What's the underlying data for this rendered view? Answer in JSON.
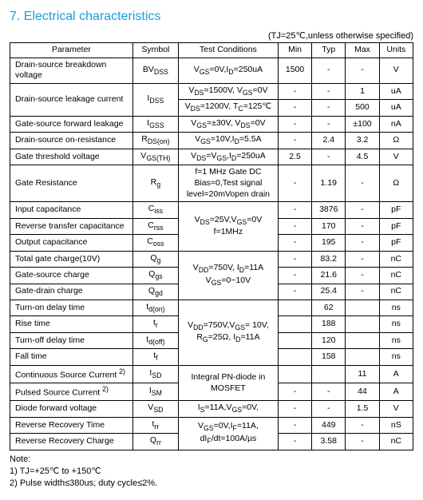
{
  "section_title": "7.  Electrical characteristics",
  "condition_note": "(TJ=25℃,unless otherwise specified)",
  "headers": {
    "parameter": "Parameter",
    "symbol": "Symbol",
    "test_conditions": "Test Conditions",
    "min": "Min",
    "typ": "Typ",
    "max": "Max",
    "units": "Units"
  },
  "rows": [
    {
      "param": "Drain-source breakdown voltage",
      "symbol": "BV<sub>DSS</sub>",
      "tc": "V<sub>GS</sub>=0V,I<sub>D</sub>=250uA",
      "min": "1500",
      "typ": "-",
      "max": "-",
      "units": "V"
    },
    {
      "param": "Drain-source leakage current",
      "symbol": "I<sub>DSS</sub>",
      "tc": "V<sub>DS</sub>=1500V, V<sub>GS</sub>=0V",
      "min": "-",
      "typ": "-",
      "max": "1",
      "units": "uA",
      "rowspan_param": 2,
      "rowspan_symbol": 2
    },
    {
      "tc": "V<sub>DS</sub>=1200V, T<sub>C</sub>=125℃",
      "min": "-",
      "typ": "-",
      "max": "500",
      "units": "uA"
    },
    {
      "param": "Gate-source forward leakage",
      "symbol": "I<sub>GSS</sub>",
      "tc": "V<sub>GS</sub>=±30V, V<sub>DS</sub>=0V",
      "min": "-",
      "typ": "-",
      "max": "±100",
      "units": "nA"
    },
    {
      "param": "Drain-source on-resistance",
      "symbol": "R<sub>DS(on)</sub>",
      "tc": "V<sub>GS</sub>=10V,I<sub>D</sub>=5.5A",
      "min": "-",
      "typ": "2.4",
      "max": "3.2",
      "units": "Ω"
    },
    {
      "param": "Gate threshold voltage",
      "symbol": "V<sub>GS(TH)</sub>",
      "tc": "V<sub>DS</sub>=V<sub>GS</sub>,I<sub>D</sub>=250uA",
      "min": "2.5",
      "typ": "-",
      "max": "4.5",
      "units": "V"
    },
    {
      "param": "Gate Resistance",
      "symbol": "R<sub>g</sub>",
      "tc": "f=1 MHz Gate DC Bias=0,Test signal level=20mVopen drain",
      "min": "-",
      "typ": "1.19",
      "max": "-",
      "units": "Ω"
    },
    {
      "param": "Input capacitance",
      "symbol": "C<sub>iss</sub>",
      "tc": "V<sub>DS</sub>=25V,V<sub>GS</sub>=0V f=1MHz",
      "min": "-",
      "typ": "3876",
      "max": "-",
      "units": "pF",
      "rowspan_tc": 3
    },
    {
      "param": "Reverse transfer capacitance",
      "symbol": "C<sub>rss</sub>",
      "min": "-",
      "typ": "170",
      "max": "-",
      "units": "pF"
    },
    {
      "param": "Output capacitance",
      "symbol": "C<sub>oss</sub>",
      "min": "-",
      "typ": "195",
      "max": "-",
      "units": "pF"
    },
    {
      "param": "Total gate charge(10V)",
      "symbol": "Q<sub>g</sub>",
      "tc": "V<sub>DD</sub>=750V, I<sub>D</sub>=11A V<sub>GS</sub>=0~10V",
      "min": "-",
      "typ": "83.2",
      "max": "-",
      "units": "nC",
      "rowspan_tc": 3
    },
    {
      "param": "Gate-source charge",
      "symbol": "Q<sub>gs</sub>",
      "min": "-",
      "typ": "21.6",
      "max": "-",
      "units": "nC"
    },
    {
      "param": "Gate-drain charge",
      "symbol": "Q<sub>gd</sub>",
      "min": "-",
      "typ": "25.4",
      "max": "-",
      "units": "nC"
    },
    {
      "param": "Turn-on delay time",
      "symbol": "t<sub>d(on)</sub>",
      "tc": "V<sub>DD</sub>=750V,V<sub>GS</sub>= 10V, R<sub>G</sub>=25Ω, I<sub>D</sub>=11A",
      "min": "",
      "typ": "62",
      "max": "",
      "units": "ns",
      "rowspan_tc": 4
    },
    {
      "param": "Rise time",
      "symbol": "t<sub>r</sub>",
      "min": "",
      "typ": "188",
      "max": "",
      "units": "ns"
    },
    {
      "param": "Turn-off delay time",
      "symbol": "t<sub>d(off)</sub>",
      "min": "",
      "typ": "120",
      "max": "",
      "units": "ns"
    },
    {
      "param": "Fall time",
      "symbol": "t<sub>f</sub>",
      "min": "",
      "typ": "158",
      "max": "",
      "units": "ns"
    },
    {
      "param": "Continuous Source Current <sup>2)</sup>",
      "symbol": "I<sub>SD</sub>",
      "tc": "Integral PN-diode in MOSFET",
      "min": "",
      "typ": "",
      "max": "11",
      "units": "A",
      "rowspan_tc": 2
    },
    {
      "param": "Pulsed Source Current <sup>2)</sup>",
      "symbol": "I<sub>SM</sub>",
      "min": "-",
      "typ": "-",
      "max": "44",
      "units": "A"
    },
    {
      "param": "Diode forward voltage",
      "symbol": "V<sub>SD</sub>",
      "tc": "I<sub>S</sub>=11A,V<sub>GS</sub>=0V,",
      "min": "-",
      "typ": "-",
      "max": "1.5",
      "units": "V"
    },
    {
      "param": "Reverse Recovery Time",
      "symbol": "t<sub>rr</sub>",
      "tc": "V<sub>GS</sub>=0V,I<sub>F</sub>=11A, dI<sub>F</sub>/dt=100A/µs",
      "min": "-",
      "typ": "449",
      "max": "-",
      "units": "nS",
      "rowspan_tc": 2
    },
    {
      "param": "Reverse Recovery Charge",
      "symbol": "Q<sub>rr</sub>",
      "min": "-",
      "typ": "3.58",
      "max": "-",
      "units": "nC"
    }
  ],
  "notes_title": "Note:",
  "notes": [
    "1) TJ=+25℃ to +150℃",
    "2) Pulse width≤380us; duty cycle≤2%."
  ]
}
